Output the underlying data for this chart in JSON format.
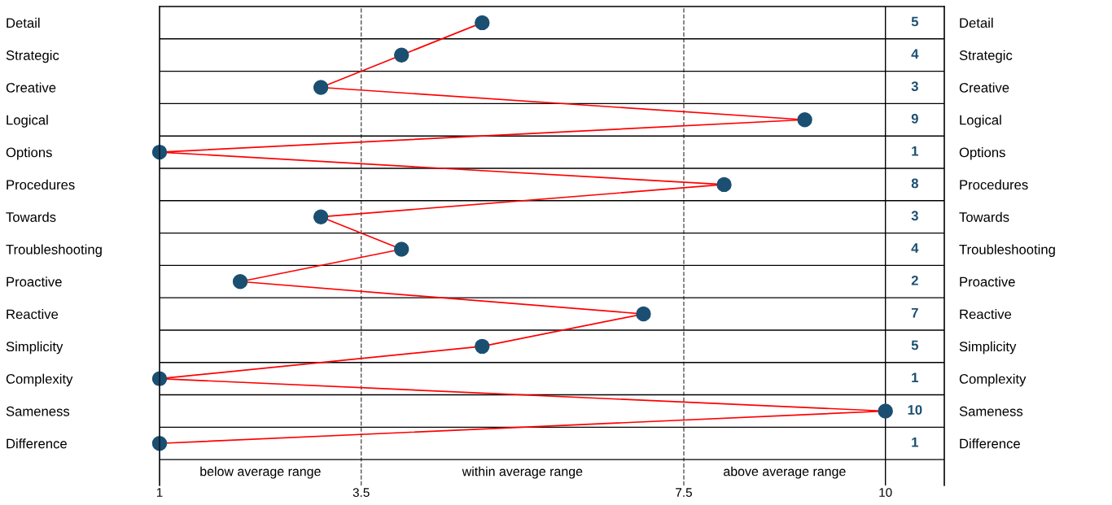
{
  "chart_data": {
    "type": "line",
    "orientation": "horizontal",
    "categories": [
      "Detail",
      "Strategic",
      "Creative",
      "Logical",
      "Options",
      "Procedures",
      "Towards",
      "Troubleshooting",
      "Proactive",
      "Reactive",
      "Simplicity",
      "Complexity",
      "Sameness",
      "Difference"
    ],
    "series": [
      {
        "color": "#ff0000",
        "colors": [
          "#1b4f72",
          "#1b4f72",
          "#1b4f72",
          "#1b4f72",
          "#1b4f72",
          "#1b4f72",
          "#1b4f72",
          "#1b4f72",
          "#1b4f72",
          "#1b4f72",
          "#1b4f72",
          "#1b4f72",
          "#1b4f72",
          "#1b4f72"
        ],
        "values": [
          5,
          4,
          3,
          9,
          1,
          8,
          3,
          4,
          2,
          7,
          5,
          1,
          10,
          1
        ]
      }
    ],
    "marker": "circle",
    "line_style": "solid",
    "xlim": [
      1,
      10.73
    ],
    "xticks": [
      1,
      3.5,
      7.5,
      10
    ],
    "ref_lines": [
      {
        "axis": "x",
        "value": 3.5,
        "line_style": "dashed",
        "color": "#555555"
      },
      {
        "axis": "x",
        "value": 7.5,
        "line_style": "dashed",
        "color": "#555555"
      },
      {
        "axis": "x",
        "value": 10,
        "line_style": "solid",
        "color": "#000000"
      }
    ],
    "annotations": [
      "5",
      "4",
      "3",
      "9",
      "1",
      "8",
      "3",
      "4",
      "2",
      "7",
      "5",
      "1",
      "10",
      "1",
      "below average range",
      "within average range",
      "above average range"
    ],
    "grid": false,
    "legend": false
  }
}
